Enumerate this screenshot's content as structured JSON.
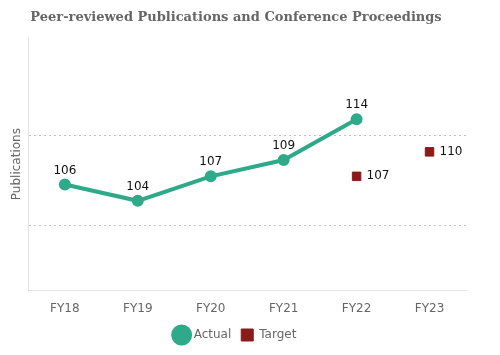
{
  "chart_data": {
    "type": "line",
    "title": "Peer-reviewed Publications and Conference Proceedings",
    "y_label": "Publications",
    "categories": [
      "FY18",
      "FY19",
      "FY20",
      "FY21",
      "FY22",
      "FY23"
    ],
    "series": [
      {
        "name": "Actual",
        "color": "#2EAA8A",
        "values": [
          106,
          104,
          107,
          109,
          114,
          null
        ],
        "marker": "circle",
        "line_style": "solid"
      },
      {
        "name": "Target",
        "color": "#8B1A1A",
        "values": [
          null,
          null,
          null,
          null,
          107,
          110
        ],
        "marker": "square",
        "line_style": "none"
      }
    ],
    "ylim": [
      93,
      124
    ],
    "yticks": [
      112,
      101
    ],
    "grid": true,
    "legend": "bottom",
    "data_labels": true,
    "tick_labels": "x"
  }
}
